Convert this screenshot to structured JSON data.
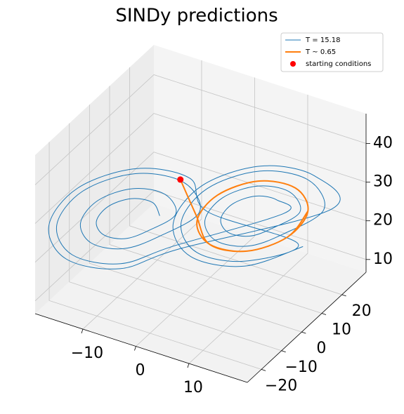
{
  "chart_data": {
    "type": "line3d",
    "title": "SINDy predictions",
    "xlim": [
      -19,
      21
    ],
    "ylim": [
      -27,
      32
    ],
    "zlim": [
      6.7,
      47.7
    ],
    "xticks": [
      {
        "value": -10,
        "label": "−10"
      },
      0,
      10
    ],
    "yticks": [
      {
        "value": -20,
        "label": "−20"
      },
      {
        "value": -10,
        "label": "−10"
      },
      0,
      10,
      20
    ],
    "zticks": [
      10,
      20,
      30,
      40
    ],
    "grid": true,
    "legend": "upper right",
    "series": [
      {
        "name": "T = 15.18",
        "color": "#1f77b4",
        "kind": "line",
        "x": [
          -4.5,
          -5.7,
          -8.5,
          -11.3,
          -12.5,
          -11.3,
          -8.5,
          -5.7,
          -2.5,
          -4.3,
          -8.5,
          -12.7,
          -14.5,
          -12.7,
          -8.5,
          -4.3,
          0.5,
          -2.1,
          -8.5,
          -14.9,
          -17.5,
          -14.9,
          -8.5,
          -2.1,
          12.5,
          11.3,
          8.5,
          5.7,
          4.5,
          5.7,
          8.5,
          11.3,
          14.5,
          12.7,
          8.5,
          4.3,
          2.5,
          4.3,
          8.5,
          12.7,
          17.5,
          14.9,
          8.5,
          2.1,
          -0.5,
          2.1,
          8.5,
          14.9,
          1.5,
          -1.4,
          -8.5,
          -15.6,
          -18.5,
          -15.6,
          -8.5,
          -1.4,
          18.5,
          15.6,
          8.5,
          1.4,
          -1.5,
          1.4,
          8.5,
          15.6
        ],
        "y": [
          -3.3,
          -3.7,
          -6.9,
          -11,
          -13.7,
          -13.3,
          -10.1,
          -6,
          -0.7,
          -1.3,
          -6.1,
          -12.3,
          -16.3,
          -15.7,
          -10.9,
          -4.7,
          3.2,
          2.3,
          -4.9,
          -14.2,
          -20.2,
          -19.3,
          -12.1,
          -2.8,
          13.7,
          13.3,
          10.1,
          6,
          3.3,
          3.7,
          6.9,
          11,
          16.3,
          15.7,
          10.9,
          4.7,
          0.7,
          1.3,
          6.1,
          12.3,
          20.2,
          19.3,
          12.1,
          2.8,
          -3.2,
          -2.3,
          4.9,
          14.2,
          4.5,
          3.5,
          -4.5,
          -14.9,
          -21.5,
          -20.5,
          -12.5,
          -2.1,
          21.5,
          20.5,
          12.5,
          2.1,
          -4.5,
          -3.5,
          4.5,
          14.9
        ],
        "z": [
          27,
          30.1,
          31.4,
          30.1,
          27,
          23.9,
          22.6,
          23.9,
          27,
          31.7,
          33.6,
          31.7,
          27,
          22.3,
          20.4,
          22.3,
          27,
          34,
          36.9,
          34,
          27,
          20,
          17.1,
          20,
          27,
          30.1,
          31.4,
          30.1,
          27,
          23.9,
          22.6,
          23.9,
          27,
          31.7,
          33.6,
          31.7,
          27,
          22.3,
          20.4,
          22.3,
          27,
          34,
          36.9,
          34,
          27,
          20,
          17.1,
          20,
          27,
          34.8,
          38,
          34.8,
          27,
          19.2,
          16,
          19.2,
          27,
          34.8,
          38,
          34.8,
          27,
          19.2,
          16,
          19.2
        ]
      },
      {
        "name": "T ~  0.65",
        "color": "#ff7f0e",
        "kind": "line",
        "x": [
          -3,
          0,
          3.6,
          8.5,
          13.4,
          15.5,
          13.4,
          8.5,
          3.6,
          1.5,
          3.6,
          8.5,
          13.4,
          15.5
        ],
        "y": [
          3,
          3,
          0.1,
          5.7,
          13,
          17.6,
          16.9,
          11.3,
          4,
          -0.6,
          0.1,
          5.7,
          13,
          17.6
        ],
        "z": [
          34,
          26,
          21.6,
          19.3,
          21.6,
          27,
          32.4,
          34.7,
          32.4,
          27,
          21.6,
          19.3,
          21.6,
          27
        ]
      },
      {
        "name": "starting conditions",
        "color": "#ff0000",
        "kind": "point",
        "x": [
          -3
        ],
        "y": [
          3
        ],
        "z": [
          34
        ]
      }
    ]
  }
}
